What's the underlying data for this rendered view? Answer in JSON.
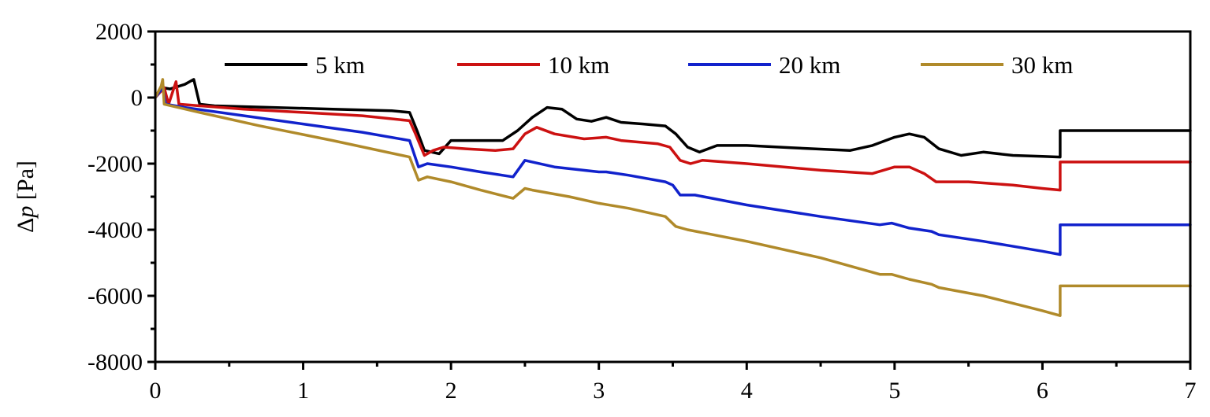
{
  "chart_data": {
    "type": "line",
    "title": "",
    "xlabel": "",
    "ylabel": {
      "prefix": "Δ",
      "symbol": "p",
      "unit": " [Pa]"
    },
    "xlim": [
      0,
      7
    ],
    "ylim": [
      -8000,
      2000
    ],
    "x_ticks": [
      0,
      1,
      2,
      3,
      4,
      5,
      6,
      7
    ],
    "x_tick_labels": [
      "0",
      "1",
      "2",
      "3",
      "4",
      "5",
      "6",
      "7"
    ],
    "y_ticks": [
      2000,
      0,
      -2000,
      -4000,
      -6000,
      -8000
    ],
    "y_tick_labels": [
      "2000",
      "0",
      "-2000",
      "-4000",
      "-6000",
      "-8000"
    ],
    "grid": false,
    "legend_position": "top",
    "series": [
      {
        "name": "5 km",
        "color": "#000000",
        "points": [
          [
            0,
            0
          ],
          [
            0.05,
            300
          ],
          [
            0.1,
            260
          ],
          [
            0.2,
            400
          ],
          [
            0.26,
            550
          ],
          [
            0.3,
            -200
          ],
          [
            0.4,
            -250
          ],
          [
            0.8,
            -300
          ],
          [
            1.2,
            -350
          ],
          [
            1.6,
            -400
          ],
          [
            1.72,
            -450
          ],
          [
            1.77,
            -1000
          ],
          [
            1.82,
            -1600
          ],
          [
            1.92,
            -1700
          ],
          [
            2.0,
            -1300
          ],
          [
            2.1,
            -1300
          ],
          [
            2.2,
            -1300
          ],
          [
            2.35,
            -1300
          ],
          [
            2.45,
            -1000
          ],
          [
            2.55,
            -600
          ],
          [
            2.65,
            -300
          ],
          [
            2.75,
            -350
          ],
          [
            2.85,
            -650
          ],
          [
            2.95,
            -720
          ],
          [
            3.05,
            -600
          ],
          [
            3.15,
            -750
          ],
          [
            3.3,
            -800
          ],
          [
            3.45,
            -860
          ],
          [
            3.52,
            -1100
          ],
          [
            3.6,
            -1500
          ],
          [
            3.68,
            -1650
          ],
          [
            3.8,
            -1450
          ],
          [
            4.0,
            -1450
          ],
          [
            4.3,
            -1520
          ],
          [
            4.7,
            -1600
          ],
          [
            4.85,
            -1450
          ],
          [
            5.0,
            -1200
          ],
          [
            5.1,
            -1100
          ],
          [
            5.2,
            -1200
          ],
          [
            5.3,
            -1550
          ],
          [
            5.45,
            -1750
          ],
          [
            5.6,
            -1650
          ],
          [
            5.8,
            -1750
          ],
          [
            6.0,
            -1780
          ],
          [
            6.12,
            -1800
          ],
          [
            6.12,
            -1000
          ],
          [
            7.0,
            -1000
          ]
        ]
      },
      {
        "name": "10 km",
        "color": "#cc1111",
        "points": [
          [
            0,
            0
          ],
          [
            0.06,
            300
          ],
          [
            0.09,
            -200
          ],
          [
            0.14,
            480
          ],
          [
            0.16,
            -200
          ],
          [
            0.3,
            -250
          ],
          [
            0.6,
            -350
          ],
          [
            1.0,
            -450
          ],
          [
            1.4,
            -550
          ],
          [
            1.72,
            -700
          ],
          [
            1.76,
            -1100
          ],
          [
            1.82,
            -1750
          ],
          [
            1.88,
            -1600
          ],
          [
            1.95,
            -1500
          ],
          [
            2.1,
            -1550
          ],
          [
            2.3,
            -1600
          ],
          [
            2.42,
            -1550
          ],
          [
            2.5,
            -1100
          ],
          [
            2.58,
            -900
          ],
          [
            2.7,
            -1100
          ],
          [
            2.9,
            -1250
          ],
          [
            3.05,
            -1200
          ],
          [
            3.15,
            -1300
          ],
          [
            3.4,
            -1400
          ],
          [
            3.48,
            -1500
          ],
          [
            3.55,
            -1900
          ],
          [
            3.62,
            -2000
          ],
          [
            3.7,
            -1900
          ],
          [
            4.0,
            -2000
          ],
          [
            4.5,
            -2200
          ],
          [
            4.85,
            -2300
          ],
          [
            5.0,
            -2100
          ],
          [
            5.1,
            -2100
          ],
          [
            5.2,
            -2300
          ],
          [
            5.28,
            -2550
          ],
          [
            5.5,
            -2550
          ],
          [
            5.8,
            -2650
          ],
          [
            6.0,
            -2750
          ],
          [
            6.12,
            -2800
          ],
          [
            6.12,
            -1950
          ],
          [
            7.0,
            -1950
          ]
        ]
      },
      {
        "name": "20 km",
        "color": "#1122cc",
        "points": [
          [
            0,
            0
          ],
          [
            0.05,
            300
          ],
          [
            0.07,
            -200
          ],
          [
            0.2,
            -300
          ],
          [
            0.6,
            -550
          ],
          [
            1.0,
            -800
          ],
          [
            1.4,
            -1050
          ],
          [
            1.72,
            -1300
          ],
          [
            1.78,
            -2100
          ],
          [
            1.84,
            -2000
          ],
          [
            2.0,
            -2100
          ],
          [
            2.2,
            -2250
          ],
          [
            2.42,
            -2400
          ],
          [
            2.5,
            -1900
          ],
          [
            2.55,
            -1950
          ],
          [
            2.7,
            -2100
          ],
          [
            3.0,
            -2250
          ],
          [
            3.05,
            -2250
          ],
          [
            3.2,
            -2350
          ],
          [
            3.45,
            -2550
          ],
          [
            3.5,
            -2650
          ],
          [
            3.55,
            -2950
          ],
          [
            3.65,
            -2950
          ],
          [
            4.0,
            -3250
          ],
          [
            4.5,
            -3600
          ],
          [
            4.9,
            -3850
          ],
          [
            4.98,
            -3800
          ],
          [
            5.1,
            -3950
          ],
          [
            5.25,
            -4050
          ],
          [
            5.3,
            -4150
          ],
          [
            5.6,
            -4350
          ],
          [
            6.0,
            -4650
          ],
          [
            6.12,
            -4750
          ],
          [
            6.12,
            -3850
          ],
          [
            7.0,
            -3850
          ]
        ]
      },
      {
        "name": "30 km",
        "color": "#b08a2a",
        "points": [
          [
            0,
            0
          ],
          [
            0.04,
            350
          ],
          [
            0.05,
            550
          ],
          [
            0.06,
            -200
          ],
          [
            0.3,
            -450
          ],
          [
            0.7,
            -850
          ],
          [
            1.2,
            -1300
          ],
          [
            1.72,
            -1800
          ],
          [
            1.78,
            -2500
          ],
          [
            1.84,
            -2400
          ],
          [
            2.0,
            -2550
          ],
          [
            2.2,
            -2800
          ],
          [
            2.42,
            -3050
          ],
          [
            2.5,
            -2750
          ],
          [
            2.55,
            -2800
          ],
          [
            2.8,
            -3000
          ],
          [
            3.0,
            -3200
          ],
          [
            3.2,
            -3350
          ],
          [
            3.45,
            -3600
          ],
          [
            3.52,
            -3900
          ],
          [
            3.6,
            -4000
          ],
          [
            4.0,
            -4350
          ],
          [
            4.5,
            -4850
          ],
          [
            4.9,
            -5350
          ],
          [
            4.98,
            -5350
          ],
          [
            5.1,
            -5500
          ],
          [
            5.25,
            -5650
          ],
          [
            5.3,
            -5750
          ],
          [
            5.6,
            -6000
          ],
          [
            6.0,
            -6450
          ],
          [
            6.12,
            -6600
          ],
          [
            6.12,
            -5700
          ],
          [
            7.0,
            -5700
          ]
        ]
      }
    ]
  }
}
